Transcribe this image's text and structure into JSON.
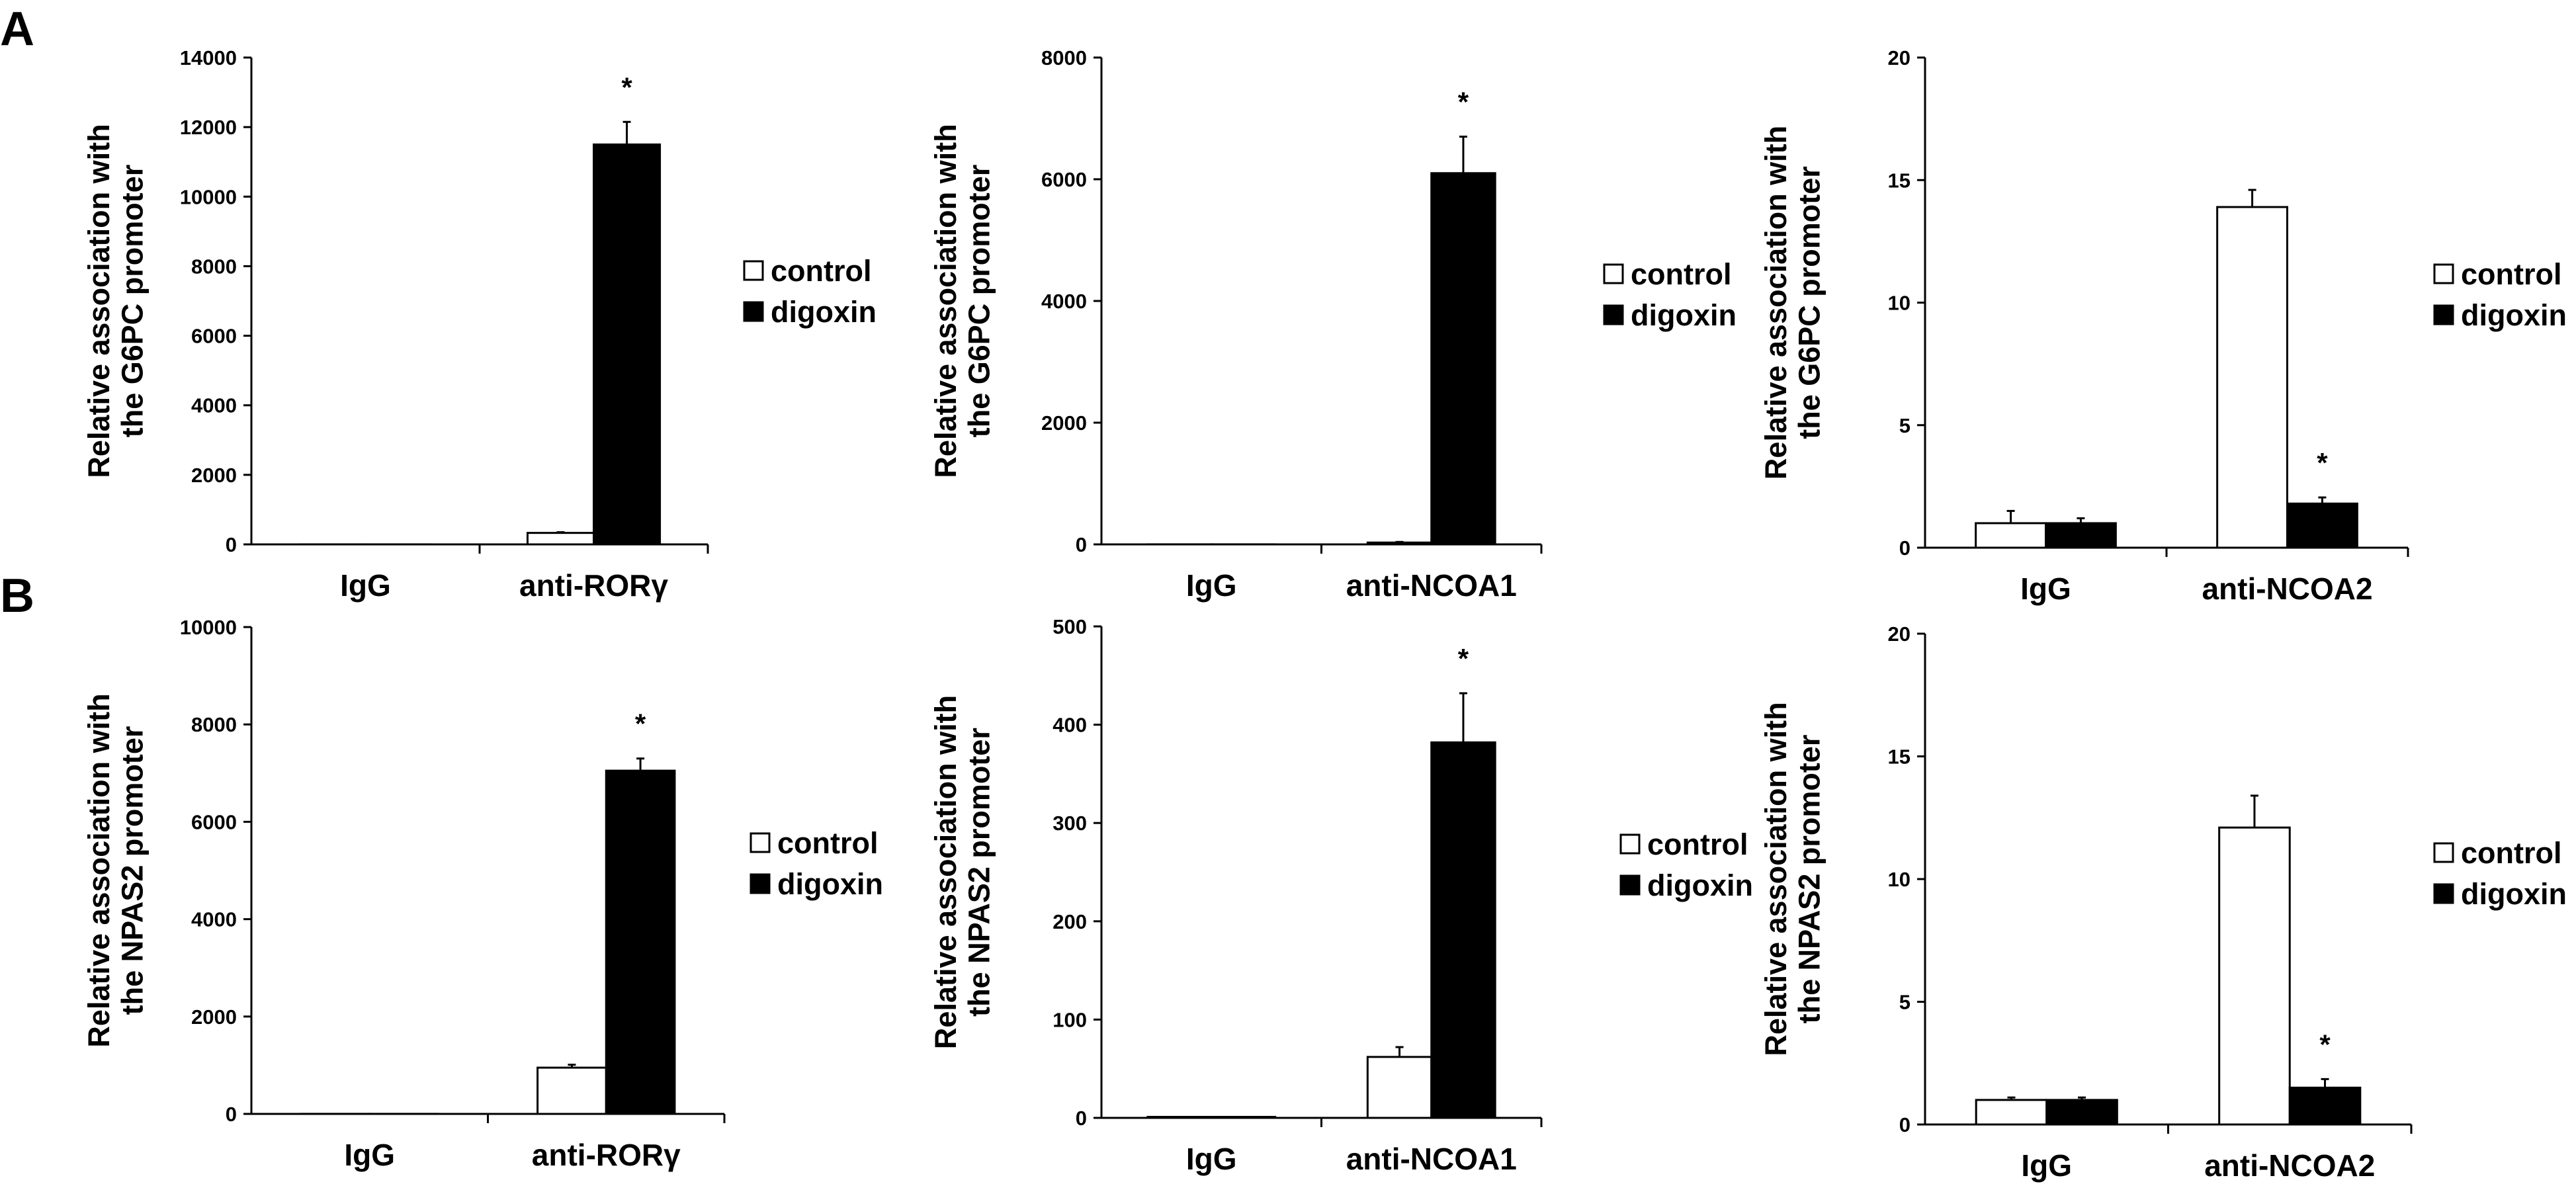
{
  "panel_labels": [
    "A",
    "B"
  ],
  "chart_data": [
    {
      "type": "bar",
      "panel": "A",
      "categories": [
        "IgG",
        "anti-RORγ"
      ],
      "series": [
        {
          "name": "control",
          "values": [
            1,
            330
          ],
          "errors": [
            0,
            20
          ]
        },
        {
          "name": "digoxin",
          "values": [
            1,
            11500
          ],
          "errors": [
            0,
            650
          ]
        }
      ],
      "ylabel_lines": [
        "Relative association with",
        "the G6PC promoter"
      ],
      "ylim": [
        0,
        14000
      ],
      "yticks": [
        0,
        2000,
        4000,
        6000,
        8000,
        10000,
        12000,
        14000
      ],
      "legend": [
        "control",
        "digoxin"
      ],
      "legend_position": "right",
      "significance": [
        {
          "category": 1,
          "series": 1,
          "mark": "*"
        }
      ]
    },
    {
      "type": "bar",
      "panel": "A",
      "categories": [
        "IgG",
        "anti-NCOA1"
      ],
      "series": [
        {
          "name": "control",
          "values": [
            1,
            30
          ],
          "errors": [
            0,
            10
          ]
        },
        {
          "name": "digoxin",
          "values": [
            1,
            6100
          ],
          "errors": [
            0,
            600
          ]
        }
      ],
      "ylabel_lines": [
        "Relative association with",
        "the G6PC promoter"
      ],
      "ylim": [
        0,
        8000
      ],
      "yticks": [
        0,
        2000,
        4000,
        6000,
        8000
      ],
      "legend": [
        "control",
        "digoxin"
      ],
      "legend_position": "right",
      "significance": [
        {
          "category": 1,
          "series": 1,
          "mark": "*"
        }
      ]
    },
    {
      "type": "bar",
      "panel": "A",
      "categories": [
        "IgG",
        "anti-NCOA2"
      ],
      "series": [
        {
          "name": "control",
          "values": [
            1,
            13.9
          ],
          "errors": [
            0.5,
            0.7
          ]
        },
        {
          "name": "digoxin",
          "values": [
            1,
            1.8
          ],
          "errors": [
            0.2,
            0.25
          ]
        }
      ],
      "ylabel_lines": [
        "Relative association with",
        "the G6PC promoter"
      ],
      "ylim": [
        0,
        20
      ],
      "yticks": [
        0,
        5,
        10,
        15,
        20
      ],
      "legend": [
        "control",
        "digoxin"
      ],
      "legend_position": "right",
      "significance": [
        {
          "category": 1,
          "series": 1,
          "mark": "*"
        }
      ]
    },
    {
      "type": "bar",
      "panel": "B",
      "categories": [
        "IgG",
        "anti-RORγ"
      ],
      "series": [
        {
          "name": "control",
          "values": [
            1,
            950
          ],
          "errors": [
            0,
            60
          ]
        },
        {
          "name": "digoxin",
          "values": [
            1,
            7050
          ],
          "errors": [
            0,
            250
          ]
        }
      ],
      "ylabel_lines": [
        "Relative association with",
        "the NPAS2 promoter"
      ],
      "ylim": [
        0,
        10000
      ],
      "yticks": [
        0,
        2000,
        4000,
        6000,
        8000,
        10000
      ],
      "legend": [
        "control",
        "digoxin"
      ],
      "legend_position": "right",
      "significance": [
        {
          "category": 1,
          "series": 1,
          "mark": "*"
        }
      ]
    },
    {
      "type": "bar",
      "panel": "B",
      "categories": [
        "IgG",
        "anti-NCOA1"
      ],
      "series": [
        {
          "name": "control",
          "values": [
            1,
            62
          ],
          "errors": [
            0,
            10
          ]
        },
        {
          "name": "digoxin",
          "values": [
            1,
            382
          ],
          "errors": [
            0,
            50
          ]
        }
      ],
      "ylabel_lines": [
        "Relative association with",
        "the NPAS2 promoter"
      ],
      "ylim": [
        0,
        500
      ],
      "yticks": [
        0,
        100,
        200,
        300,
        400,
        500
      ],
      "legend": [
        "control",
        "digoxin"
      ],
      "legend_position": "right",
      "significance": [
        {
          "category": 1,
          "series": 1,
          "mark": "*"
        }
      ]
    },
    {
      "type": "bar",
      "panel": "B",
      "categories": [
        "IgG",
        "anti-NCOA2"
      ],
      "series": [
        {
          "name": "control",
          "values": [
            1,
            12.1
          ],
          "errors": [
            0.1,
            1.3
          ]
        },
        {
          "name": "digoxin",
          "values": [
            1,
            1.5
          ],
          "errors": [
            0.1,
            0.35
          ]
        }
      ],
      "ylabel_lines": [
        "Relative association with",
        "the NPAS2 promoter"
      ],
      "ylim": [
        0,
        20
      ],
      "yticks": [
        0,
        5,
        10,
        15,
        20
      ],
      "legend": [
        "control",
        "digoxin"
      ],
      "legend_position": "right",
      "significance": [
        {
          "category": 1,
          "series": 1,
          "mark": "*"
        }
      ]
    }
  ]
}
